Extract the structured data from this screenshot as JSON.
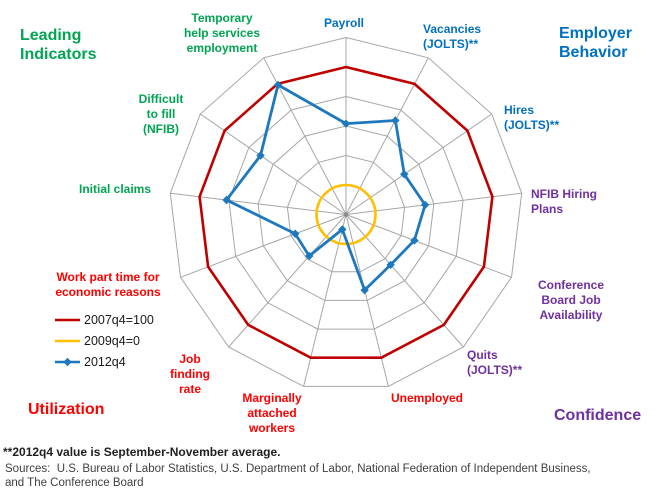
{
  "chart_data": {
    "type": "radar",
    "title": "",
    "axes": [
      "Payroll",
      "Vacancies (JOLTS)**",
      "Hires (JOLTS)**",
      "NFIB Hiring Plans",
      "Conference Board Job Availability",
      "Quits (JOLTS)**",
      "Unemployed",
      "Marginally attached workers",
      "Job finding rate",
      "Work part time for economic reasons",
      "Initial claims",
      "Difficult to fill (NFIB)",
      "Temporary help services employment"
    ],
    "start_axis": "top",
    "direction": "clockwise",
    "scale": {
      "center_value": -25,
      "ring_values": [
        0,
        25,
        50,
        75,
        100,
        125
      ],
      "ring_step": 25,
      "tick_labels_visible": false
    },
    "grid_color": "#A6A6A6",
    "series": [
      {
        "name": "2007q4=100",
        "color": "#C00000",
        "shape": "polygon",
        "marker": "none",
        "values": [
          100,
          100,
          100,
          100,
          100,
          100,
          100,
          100,
          100,
          100,
          100,
          100,
          100
        ]
      },
      {
        "name": "2009q4=0",
        "color": "#FFC000",
        "shape": "circle",
        "marker": "none",
        "values": [
          0,
          0,
          0,
          0,
          0,
          0,
          0,
          0,
          0,
          0,
          0,
          0,
          0
        ]
      },
      {
        "name": "2012q4",
        "color": "#1E78BE",
        "shape": "polygon",
        "marker": "diamond",
        "values": [
          52,
          65,
          35,
          42.5,
          37,
          32,
          41,
          -12,
          22,
          21,
          77,
          63,
          99
        ]
      }
    ],
    "legend_position": "middle-left"
  },
  "quadrant_titles": {
    "leading_indicators": {
      "text": "Leading\nIndicators",
      "color": "#00A551"
    },
    "employer_behavior": {
      "text": "Employer\nBehavior",
      "color": "#0070C0"
    },
    "utilization": {
      "text": "Utilization",
      "color": "#FF0000"
    },
    "confidence": {
      "text": "Confidence",
      "color": "#7030A0"
    }
  },
  "axis_labels": {
    "payroll": {
      "text": "Payroll",
      "color": "#0070C0"
    },
    "vacancies": {
      "text": "Vacancies\n(JOLTS)**",
      "color": "#0070C0"
    },
    "hires": {
      "text": "Hires\n(JOLTS)**",
      "color": "#0070C0"
    },
    "nfib_hiring_plans": {
      "text": "NFIB Hiring\nPlans",
      "color": "#7030A0"
    },
    "cb_job_availability": {
      "text": "Conference\nBoard Job\nAvailability",
      "color": "#7030A0"
    },
    "quits": {
      "text": "Quits\n(JOLTS)**",
      "color": "#7030A0"
    },
    "unemployed": {
      "text": "Unemployed",
      "color": "#FF0000"
    },
    "marginally_attached": {
      "text": "Marginally\nattached\nworkers",
      "color": "#FF0000"
    },
    "job_finding_rate": {
      "text": "Job\nfinding\nrate",
      "color": "#FF0000"
    },
    "work_part_time": {
      "text": "Work part time for\neconomic reasons",
      "color": "#FF0000"
    },
    "initial_claims": {
      "text": "Initial claims",
      "color": "#00A551"
    },
    "difficult_to_fill": {
      "text": "Difficult\nto fill\n(NFIB)",
      "color": "#00A551"
    },
    "temp_help": {
      "text": "Temporary\nhelp services\nemployment",
      "color": "#00A551"
    }
  },
  "legend": [
    {
      "label": "2007q4=100",
      "color": "#C00000",
      "marker": "line"
    },
    {
      "label": "2009q4=0",
      "color": "#FFC000",
      "marker": "line"
    },
    {
      "label": "2012q4",
      "color": "#1E78BE",
      "marker": "line-diamond"
    }
  ],
  "footnote": "**2012q4 value is September-November average.",
  "sources": "Sources:  U.S. Bureau of Labor Statistics, U.S. Department of Labor, National Federation of Independent Business,\nand The Conference Board"
}
